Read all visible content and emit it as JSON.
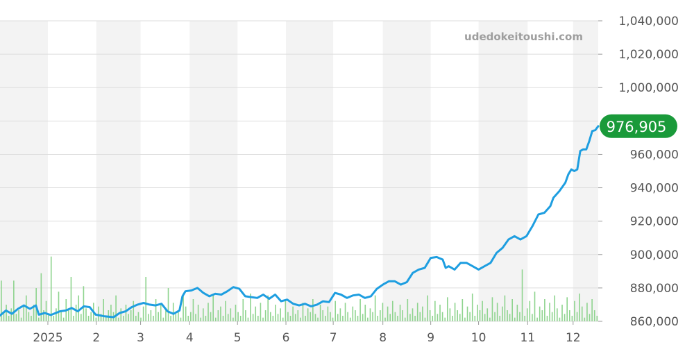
{
  "watermark": "udedokeitoushi.com",
  "chart_data": {
    "type": "line",
    "title": "",
    "xlabel": "",
    "ylabel": "",
    "ylim": [
      860000,
      1040000
    ],
    "yticks": [
      860000,
      880000,
      900000,
      920000,
      940000,
      960000,
      980000,
      1000000,
      1020000,
      1040000
    ],
    "ytick_labels": [
      "860,000",
      "880,000",
      "900,000",
      "920,000",
      "940,000",
      "960,000",
      "",
      "1,000,000",
      "1,020,000",
      "1,040,000"
    ],
    "xlim": [
      0,
      1
    ],
    "xticks": [
      {
        "label": "2025",
        "pos": 0.08
      },
      {
        "label": "2",
        "pos": 0.161
      },
      {
        "label": "3",
        "pos": 0.235
      },
      {
        "label": "4",
        "pos": 0.317
      },
      {
        "label": "5",
        "pos": 0.397
      },
      {
        "label": "6",
        "pos": 0.478
      },
      {
        "label": "7",
        "pos": 0.557
      },
      {
        "label": "8",
        "pos": 0.64
      },
      {
        "label": "9",
        "pos": 0.72
      },
      {
        "label": "10",
        "pos": 0.8
      },
      {
        "label": "11",
        "pos": 0.882
      },
      {
        "label": "12",
        "pos": 0.958
      }
    ],
    "shaded_bands": [
      [
        0.0,
        0.08
      ],
      [
        0.161,
        0.235
      ],
      [
        0.317,
        0.397
      ],
      [
        0.478,
        0.557
      ],
      [
        0.64,
        0.72
      ],
      [
        0.8,
        0.882
      ],
      [
        0.958,
        1.0
      ]
    ],
    "grid": true,
    "last_value_label": "976,905",
    "last_value": 976905,
    "series": [
      {
        "color": "#1e9ee0",
        "points": [
          [
            0.0,
            863500
          ],
          [
            0.01,
            866500
          ],
          [
            0.02,
            864500
          ],
          [
            0.03,
            867500
          ],
          [
            0.04,
            869500
          ],
          [
            0.05,
            867500
          ],
          [
            0.06,
            869500
          ],
          [
            0.065,
            864000
          ],
          [
            0.075,
            865000
          ],
          [
            0.085,
            863800
          ],
          [
            0.1,
            866000
          ],
          [
            0.11,
            866500
          ],
          [
            0.12,
            868000
          ],
          [
            0.13,
            866000
          ],
          [
            0.14,
            869000
          ],
          [
            0.15,
            868500
          ],
          [
            0.16,
            864000
          ],
          [
            0.175,
            863000
          ],
          [
            0.19,
            862500
          ],
          [
            0.2,
            865000
          ],
          [
            0.21,
            866000
          ],
          [
            0.22,
            868500
          ],
          [
            0.23,
            870000
          ],
          [
            0.24,
            871000
          ],
          [
            0.25,
            870000
          ],
          [
            0.26,
            869500
          ],
          [
            0.27,
            870500
          ],
          [
            0.28,
            866000
          ],
          [
            0.29,
            864500
          ],
          [
            0.3,
            866500
          ],
          [
            0.305,
            875000
          ],
          [
            0.31,
            878000
          ],
          [
            0.32,
            878500
          ],
          [
            0.33,
            880000
          ],
          [
            0.34,
            877000
          ],
          [
            0.35,
            875000
          ],
          [
            0.36,
            876500
          ],
          [
            0.37,
            876000
          ],
          [
            0.38,
            878000
          ],
          [
            0.39,
            880500
          ],
          [
            0.4,
            879500
          ],
          [
            0.41,
            875000
          ],
          [
            0.42,
            874500
          ],
          [
            0.43,
            874000
          ],
          [
            0.44,
            876000
          ],
          [
            0.45,
            873500
          ],
          [
            0.46,
            876000
          ],
          [
            0.47,
            872000
          ],
          [
            0.48,
            873000
          ],
          [
            0.49,
            870500
          ],
          [
            0.5,
            869500
          ],
          [
            0.51,
            870500
          ],
          [
            0.52,
            869000
          ],
          [
            0.53,
            870000
          ],
          [
            0.54,
            872000
          ],
          [
            0.55,
            871500
          ],
          [
            0.56,
            877000
          ],
          [
            0.57,
            876000
          ],
          [
            0.58,
            874000
          ],
          [
            0.59,
            875500
          ],
          [
            0.6,
            876000
          ],
          [
            0.61,
            874000
          ],
          [
            0.62,
            875000
          ],
          [
            0.63,
            879500
          ],
          [
            0.64,
            882000
          ],
          [
            0.65,
            884000
          ],
          [
            0.66,
            884000
          ],
          [
            0.67,
            882000
          ],
          [
            0.68,
            883500
          ],
          [
            0.69,
            889000
          ],
          [
            0.7,
            891000
          ],
          [
            0.71,
            892000
          ],
          [
            0.715,
            895000
          ],
          [
            0.72,
            898000
          ],
          [
            0.73,
            898500
          ],
          [
            0.74,
            897000
          ],
          [
            0.745,
            892000
          ],
          [
            0.75,
            893000
          ],
          [
            0.76,
            891000
          ],
          [
            0.77,
            895000
          ],
          [
            0.78,
            895000
          ],
          [
            0.79,
            893000
          ],
          [
            0.8,
            891000
          ],
          [
            0.81,
            893000
          ],
          [
            0.82,
            895000
          ],
          [
            0.83,
            901000
          ],
          [
            0.84,
            904000
          ],
          [
            0.85,
            909000
          ],
          [
            0.86,
            911000
          ],
          [
            0.87,
            909000
          ],
          [
            0.88,
            911000
          ],
          [
            0.89,
            917000
          ],
          [
            0.9,
            924000
          ],
          [
            0.91,
            925000
          ],
          [
            0.92,
            929000
          ],
          [
            0.925,
            934000
          ],
          [
            0.935,
            938000
          ],
          [
            0.945,
            943000
          ],
          [
            0.95,
            948000
          ],
          [
            0.955,
            951000
          ],
          [
            0.96,
            950000
          ],
          [
            0.965,
            951000
          ],
          [
            0.97,
            962000
          ],
          [
            0.975,
            963000
          ],
          [
            0.98,
            963000
          ],
          [
            0.985,
            968000
          ],
          [
            0.99,
            974000
          ],
          [
            0.995,
            974500
          ],
          [
            1.0,
            976905
          ]
        ]
      }
    ],
    "volume": {
      "color": "#8fd48f",
      "ylim": [
        0,
        60
      ],
      "values": [
        22,
        5,
        9,
        3,
        7,
        22,
        4,
        6,
        2,
        8,
        14,
        5,
        3,
        9,
        18,
        2,
        26,
        6,
        11,
        4,
        35,
        3,
        7,
        16,
        5,
        2,
        12,
        6,
        24,
        3,
        9,
        14,
        4,
        19,
        7,
        3,
        5,
        10,
        2,
        8,
        4,
        12,
        3,
        6,
        9,
        5,
        14,
        2,
        7,
        3,
        9,
        4,
        6,
        11,
        3,
        5,
        2,
        8,
        24,
        4,
        6,
        3,
        12,
        5,
        9,
        2,
        7,
        18,
        3,
        10,
        4,
        6,
        2,
        15,
        8,
        3,
        5,
        12,
        4,
        9,
        2,
        7,
        3,
        10,
        5,
        14,
        2,
        6,
        8,
        3,
        11,
        4,
        7,
        2,
        9,
        5,
        3,
        12,
        6,
        2,
        15,
        4,
        8,
        3,
        10,
        2,
        6,
        14,
        5,
        3,
        9,
        4,
        7,
        2,
        11,
        5,
        3,
        8,
        4,
        6,
        2,
        10,
        3,
        7,
        5,
        12,
        4,
        2,
        9,
        6,
        3,
        8,
        5,
        2,
        11,
        4,
        7,
        3,
        10,
        5,
        2,
        8,
        6,
        3,
        12,
        4,
        9,
        2,
        7,
        5,
        14,
        3,
        6,
        10,
        2,
        8,
        4,
        11,
        5,
        3,
        9,
        6,
        2,
        12,
        4,
        7,
        3,
        10,
        5,
        8,
        2,
        14,
        6,
        3,
        11,
        4,
        9,
        5,
        2,
        13,
        7,
        3,
        10,
        6,
        4,
        12,
        2,
        8,
        5,
        15,
        3,
        9,
        6,
        11,
        4,
        7,
        2,
        13,
        5,
        10,
        3,
        8,
        14,
        6,
        4,
        12,
        2,
        9,
        5,
        28,
        3,
        7,
        11,
        4,
        16,
        2,
        8,
        6,
        12,
        3,
        10,
        5,
        14,
        7,
        2,
        9,
        4,
        13,
        6,
        3,
        11,
        5,
        15,
        8,
        2,
        10,
        4,
        12,
        6,
        3
      ]
    }
  }
}
